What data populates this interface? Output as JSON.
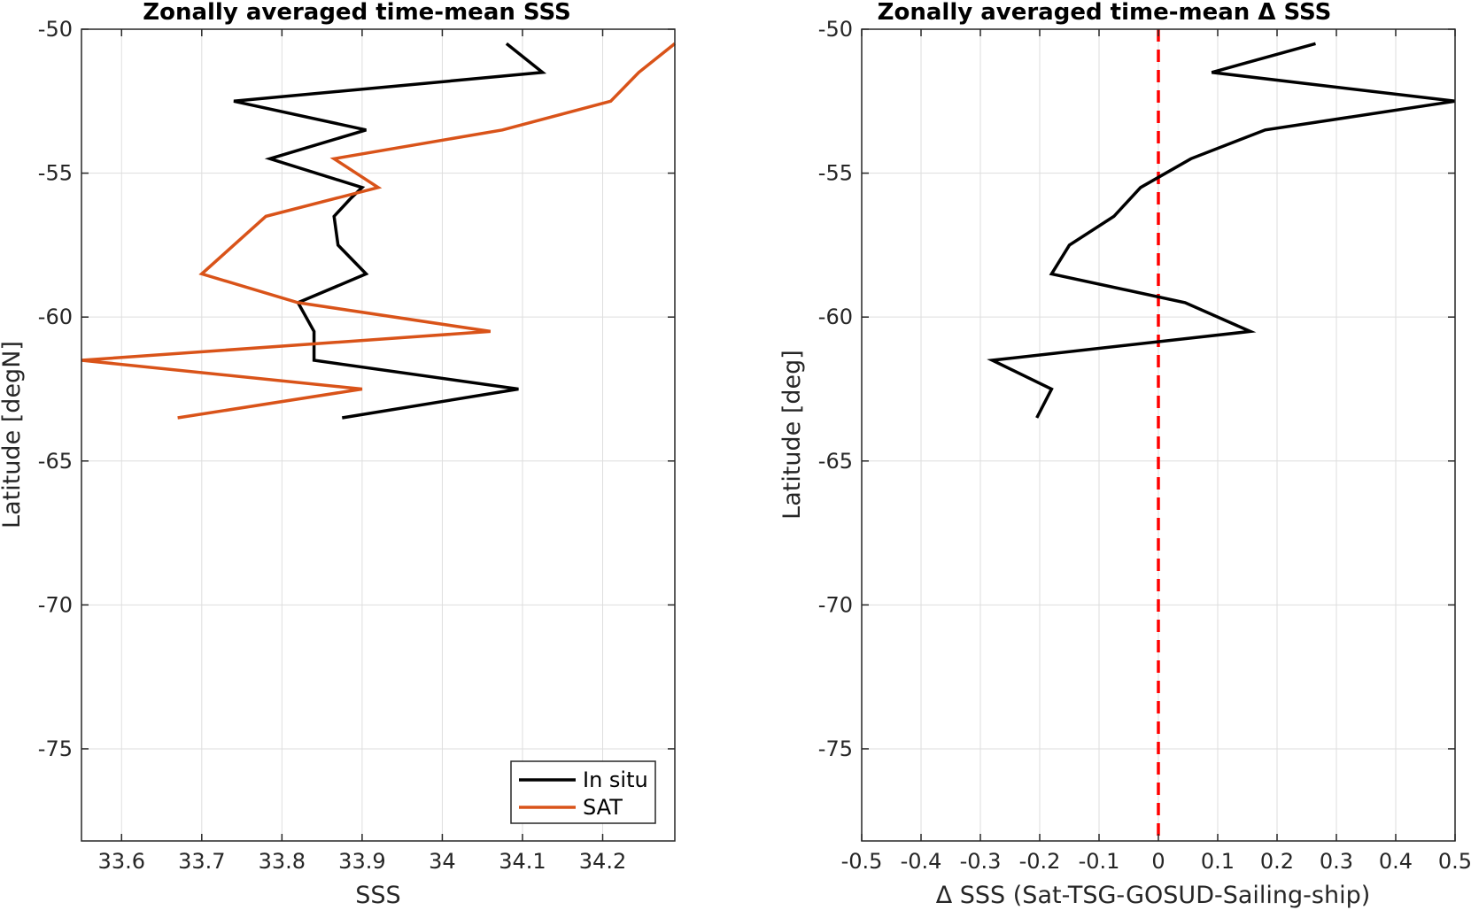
{
  "chart_data": [
    {
      "type": "line",
      "title": "Zonally averaged time-mean SSS",
      "xlabel": "SSS",
      "ylabel": "Latitude [degN]",
      "xlim": [
        33.55,
        34.29
      ],
      "ylim": [
        -78.2,
        -50
      ],
      "xticks": [
        33.6,
        33.7,
        33.8,
        33.9,
        34,
        34.1,
        34.2
      ],
      "xtick_labels": [
        "33.6",
        "33.7",
        "33.8",
        "33.9",
        "34",
        "34.1",
        "34.2"
      ],
      "yticks": [
        -50,
        -55,
        -60,
        -65,
        -70,
        -75
      ],
      "ytick_labels": [
        "-50",
        "-55",
        "-60",
        "-65",
        "-70",
        "-75"
      ],
      "grid": true,
      "legend_position": "bottom-right",
      "series": [
        {
          "name": "In situ",
          "color": "#000000",
          "x": [
            34.08,
            34.125,
            33.74,
            33.905,
            33.785,
            33.9,
            33.885,
            33.865,
            33.87,
            33.905,
            33.82,
            33.84,
            33.84,
            34.095,
            33.875
          ],
          "y": [
            -50.5,
            -51.5,
            -52.5,
            -53.5,
            -54.5,
            -55.5,
            -55.9,
            -56.5,
            -57.5,
            -58.5,
            -59.5,
            -60.5,
            -61.5,
            -62.5,
            -63.5
          ]
        },
        {
          "name": "SAT",
          "color": "#d95319",
          "x": [
            34.29,
            34.245,
            34.21,
            34.075,
            33.865,
            33.92,
            33.78,
            33.7,
            33.82,
            34.06,
            33.55,
            33.9,
            33.67
          ],
          "y": [
            -50.5,
            -51.5,
            -52.5,
            -53.5,
            -54.5,
            -55.5,
            -56.5,
            -58.5,
            -59.5,
            -60.5,
            -61.5,
            -62.5,
            -63.5
          ]
        }
      ]
    },
    {
      "type": "line",
      "title": "Zonally averaged time-mean Δ SSS",
      "xlabel": "Δ SSS (Sat-TSG-GOSUD-Sailing-ship)",
      "ylabel": "Latitude [deg]",
      "xlim": [
        -0.5,
        0.5
      ],
      "ylim": [
        -78.2,
        -50
      ],
      "xticks": [
        -0.5,
        -0.4,
        -0.3,
        -0.2,
        -0.1,
        0,
        0.1,
        0.2,
        0.3,
        0.4,
        0.5
      ],
      "xtick_labels": [
        "-0.5",
        "-0.4",
        "-0.3",
        "-0.2",
        "-0.1",
        "0",
        "0.1",
        "0.2",
        "0.3",
        "0.4",
        "0.5"
      ],
      "yticks": [
        -50,
        -55,
        -60,
        -65,
        -70,
        -75
      ],
      "ytick_labels": [
        "-50",
        "-55",
        "-60",
        "-65",
        "-70",
        "-75"
      ],
      "grid": true,
      "series": [
        {
          "color": "#000000",
          "x": [
            0.265,
            0.09,
            0.5,
            0.18,
            0.055,
            -0.03,
            -0.075,
            -0.15,
            -0.18,
            0.045,
            0.155,
            -0.28,
            -0.18,
            -0.205
          ],
          "y": [
            -50.5,
            -51.5,
            -52.5,
            -53.5,
            -54.5,
            -55.5,
            -56.5,
            -57.5,
            -58.5,
            -59.5,
            -60.5,
            -61.5,
            -62.5,
            -63.5
          ]
        }
      ],
      "reference_line": {
        "x": 0,
        "color": "#ff0000",
        "style": "dashed"
      }
    }
  ]
}
